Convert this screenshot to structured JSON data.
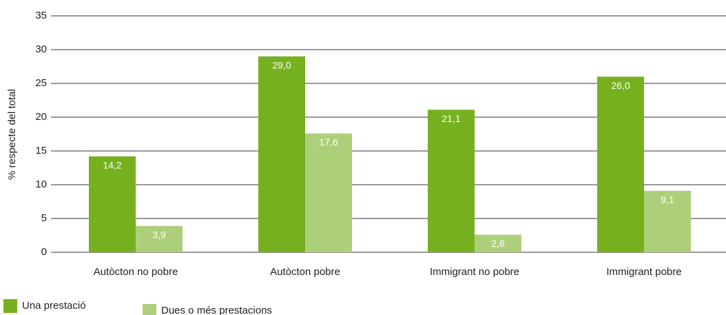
{
  "chart_data": {
    "type": "bar",
    "y_label": "% respecte del total",
    "categories": [
      "Autòcton no pobre",
      "Autòcton pobre",
      "Immigrant no pobre",
      "Immigrant pobre"
    ],
    "series": [
      {
        "name": "Una prestació",
        "color": "#77b01f",
        "values": [
          14.2,
          29.0,
          21.1,
          26.0
        ],
        "value_labels": [
          "14,2",
          "29,0",
          "21,1",
          "26,0"
        ]
      },
      {
        "name": "Dues o més prestacions",
        "color": "#aecf7a",
        "values": [
          3.9,
          17.6,
          2.6,
          9.1
        ],
        "value_labels": [
          "3,9",
          "17,6",
          "2,6",
          "9,1"
        ]
      }
    ],
    "ylim": [
      0,
      35
    ],
    "yticks": [
      0,
      5,
      10,
      15,
      20,
      25,
      30,
      35
    ],
    "grid": true,
    "legend": "bottom-left"
  }
}
